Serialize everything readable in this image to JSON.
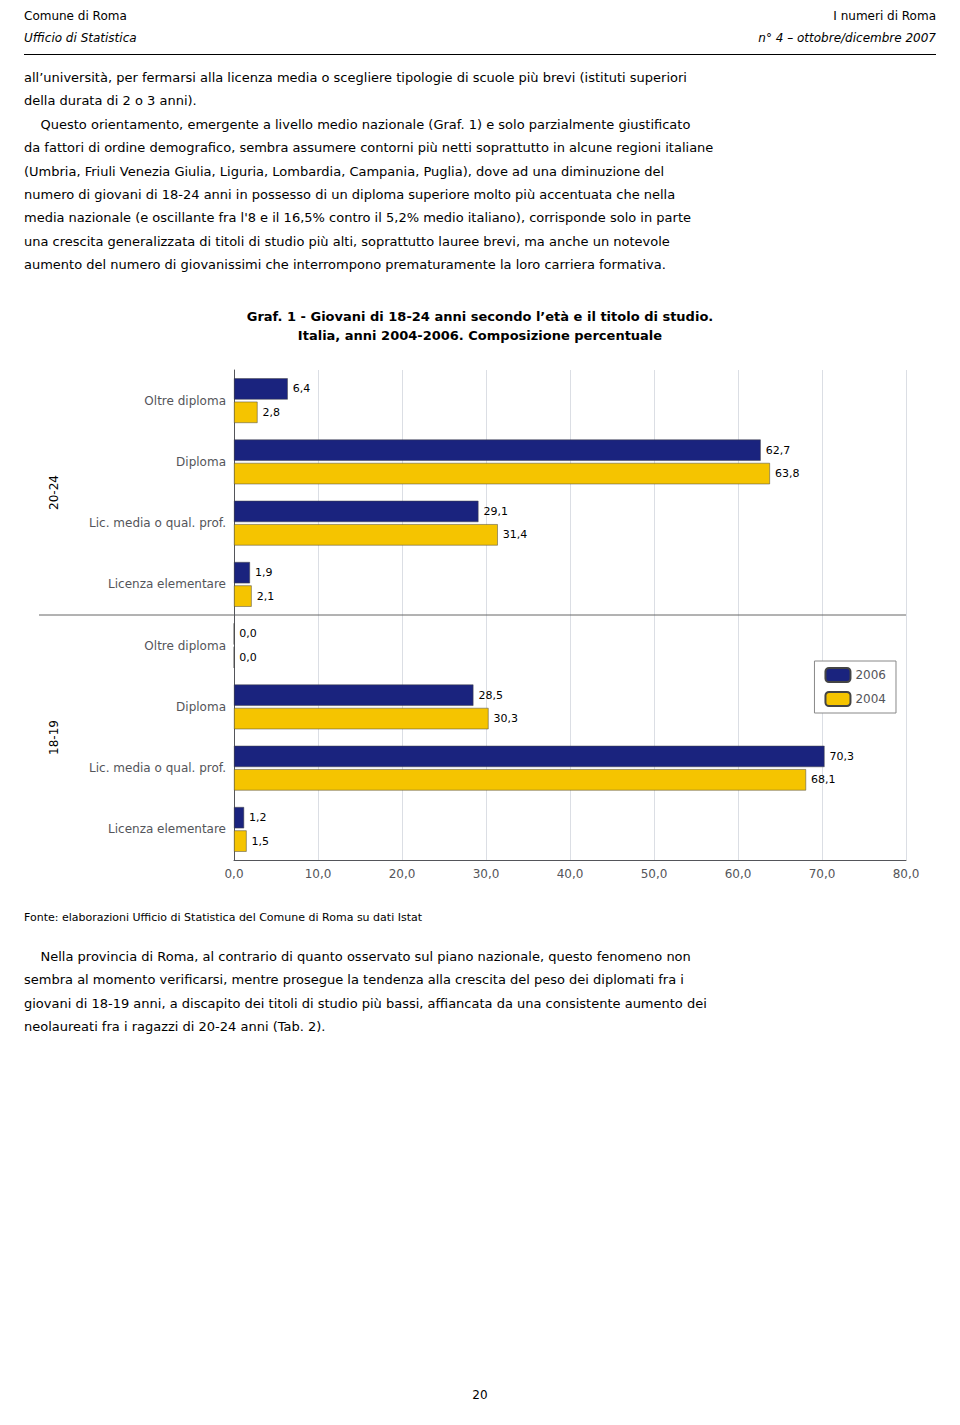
{
  "chart_data": {
    "type": "bar",
    "orientation": "horizontal",
    "title": "Graf. 1 - Giovani di 18-24 anni secondo l’età e il titolo di studio.",
    "subtitle": "Italia, anni 2004-2006. Composizione percentuale",
    "categories": [
      "Oltre diploma",
      "Diploma",
      "Lic. media o qual. prof.",
      "Licenza elementare",
      "Oltre diploma",
      "Diploma",
      "Lic. media o qual. prof.",
      "Licenza elementare"
    ],
    "category_groups": [
      "20-24",
      "20-24",
      "20-24",
      "20-24",
      "18-19",
      "18-19",
      "18-19",
      "18-19"
    ],
    "series": [
      {
        "name": "2006",
        "color": "#1a237e",
        "values": [
          6.4,
          62.7,
          29.1,
          1.9,
          0.0,
          28.5,
          70.3,
          1.2
        ],
        "value_labels": [
          "6,4",
          "62,7",
          "29,1",
          "1,9",
          "0,0",
          "28,5",
          "70,3",
          "1,2"
        ]
      },
      {
        "name": "2004",
        "color": "#f5c400",
        "values": [
          2.8,
          63.8,
          31.4,
          2.1,
          0.0,
          30.3,
          68.1,
          1.5
        ],
        "value_labels": [
          "2,8",
          "63,8",
          "31,4",
          "2,1",
          "0,0",
          "30,3",
          "68,1",
          "1,5"
        ]
      }
    ],
    "xlim": [
      0,
      80
    ],
    "xticks": [
      {
        "value": 0,
        "label": "0,0"
      },
      {
        "value": 10,
        "label": "10,0"
      },
      {
        "value": 20,
        "label": "20,0"
      },
      {
        "value": 30,
        "label": "30,0"
      },
      {
        "value": 40,
        "label": "40,0"
      },
      {
        "value": 50,
        "label": "50,0"
      },
      {
        "value": 60,
        "label": "60,0"
      },
      {
        "value": 70,
        "label": "70,0"
      },
      {
        "value": 80,
        "label": "80,0"
      }
    ],
    "grid": true,
    "legend": "lower right",
    "data_labels": true,
    "annotations": [
      "Comune di Roma",
      "Ufficio di Statistica",
      "I numeri di Roma",
      "n° 4 – ottobre/dicembre 2007",
      "all’università, per fermarsi alla licenza media o scegliere tipologie di scuole più brevi (istituti superiori\ndella durata di 2 o 3 anni).\n    Questo orientamento, emergente a livello medio nazionale (Graf. 1) e solo parzialmente giustificato\nda fattori di ordine demografico, sembra assumere contorni più netti soprattutto in alcune regioni italiane\n(Umbria, Friuli Venezia Giulia, Liguria, Lombardia, Campania, Puglia), dove ad una diminuzione del\nnumero di giovani di 18-24 anni in possesso di un diploma superiore molto più accentuata che nella\nmedia nazionale (e oscillante fra l'8 e il 16,5% contro il 5,2% medio italiano), corrisponde solo in parte\nuna crescita generalizzata di titoli di studio più alti, soprattutto lauree brevi, ma anche un notevole\naumento del numero di giovanissimi che interrompono prematuramente la loro carriera formativa.",
      "Fonte: elaborazioni Ufficio di Statistica del Comune di Roma su dati Istat",
      "    Nella provincia di Roma, al contrario di quanto osservato sul piano nazionale, questo fenomeno non\nsembra al momento verificarsi, mentre prosegue la tendenza alla crescita del peso dei diplomati fra i\ngiovani di 18-19 anni, a discapito dei titoli di studio più bassi, affiancata da una consistente aumento dei\nneolaureati fra i ragazzi di 20-24 anni (Tab. 2).",
      "20"
    ]
  }
}
